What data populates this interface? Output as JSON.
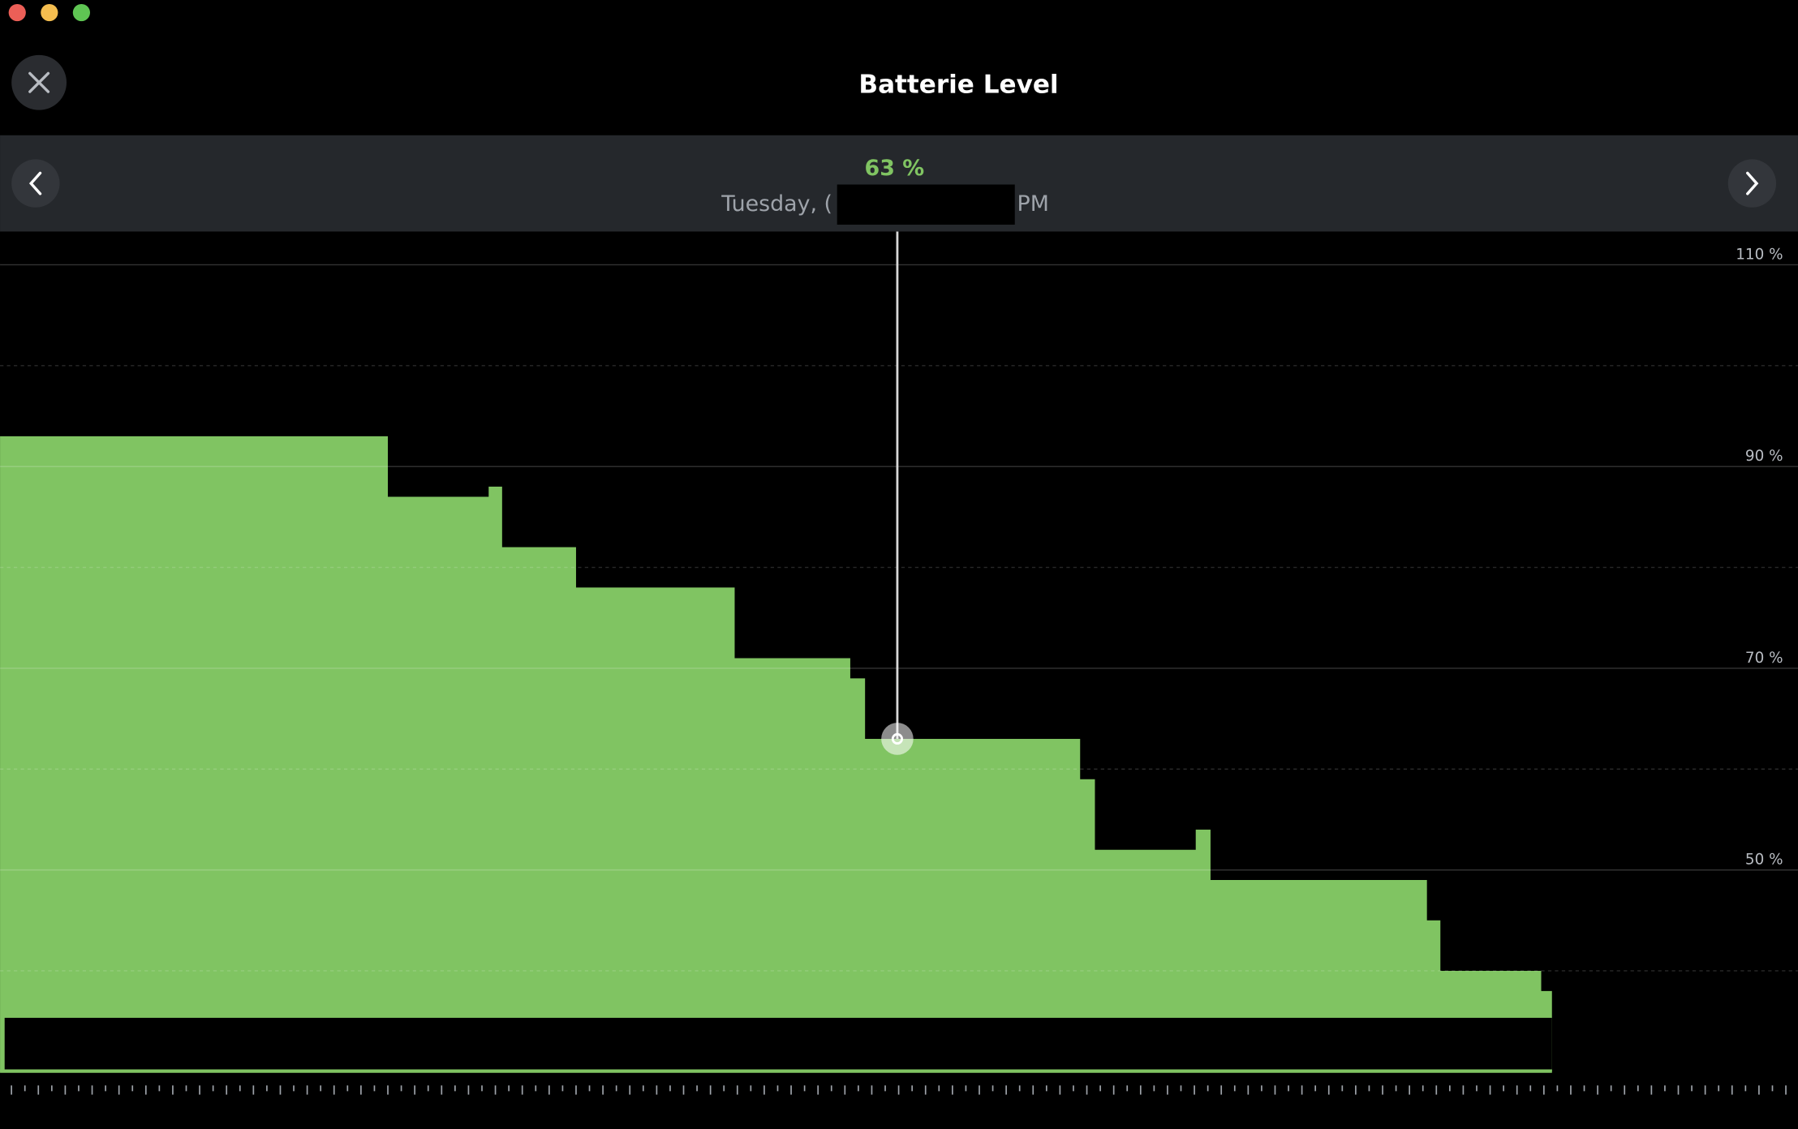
{
  "window": {
    "title": "Batterie Level"
  },
  "header": {
    "date_prefix": "Tuesday, (",
    "date_suffix": "PM"
  },
  "chart_data": {
    "type": "area",
    "step": "post",
    "color": "#80c462",
    "x": [
      -0.85,
      28,
      35.5,
      36.5,
      42,
      53.8,
      62.4,
      63.5,
      79.5,
      80.6,
      88.1,
      89.2,
      105.3,
      106.3,
      113.8,
      114.6
    ],
    "values": [
      93,
      87,
      88,
      82,
      78,
      71,
      69,
      63,
      59,
      52,
      54,
      49,
      45,
      40,
      38,
      38
    ],
    "xlim": [
      -0.85,
      132.9
    ],
    "ylim": [
      30,
      110
    ],
    "yticks": [
      {
        "value": 110,
        "label": "110 %"
      },
      {
        "value": 90,
        "label": "90 %"
      },
      {
        "value": 70,
        "label": "70 %"
      },
      {
        "value": 50,
        "label": "50 %"
      }
    ],
    "minor_yticks": [
      100,
      80,
      60,
      40
    ],
    "xticks": [
      0,
      1,
      2,
      3,
      4,
      5,
      6,
      7,
      8,
      9,
      10,
      11,
      12,
      13,
      14,
      15,
      16,
      17,
      18,
      19,
      20,
      21,
      22,
      23,
      24,
      25,
      26,
      27,
      28,
      29,
      30,
      31,
      32,
      33,
      34,
      35,
      36,
      37,
      38,
      39,
      40,
      41,
      42,
      43,
      44,
      45,
      46,
      47,
      48,
      49,
      50,
      51,
      52,
      53,
      54,
      55,
      56,
      57,
      58,
      59,
      60,
      61,
      62,
      63,
      64,
      65,
      66,
      67,
      68,
      69,
      70,
      71,
      72,
      73,
      74,
      75,
      76,
      77,
      78,
      79,
      80,
      81,
      82,
      83,
      84,
      85,
      86,
      87,
      88,
      89,
      90,
      91,
      92,
      93,
      94,
      95,
      96,
      97,
      98,
      99,
      100,
      101,
      102,
      103,
      104,
      105,
      106,
      107,
      108,
      109,
      110,
      111,
      112,
      113,
      114,
      115,
      116,
      117,
      118,
      119,
      120,
      121,
      122,
      123,
      124,
      125,
      126,
      127,
      128,
      129,
      130,
      131,
      132
    ],
    "selected": {
      "x": 65.9,
      "value": 63,
      "label": "63 %"
    }
  }
}
